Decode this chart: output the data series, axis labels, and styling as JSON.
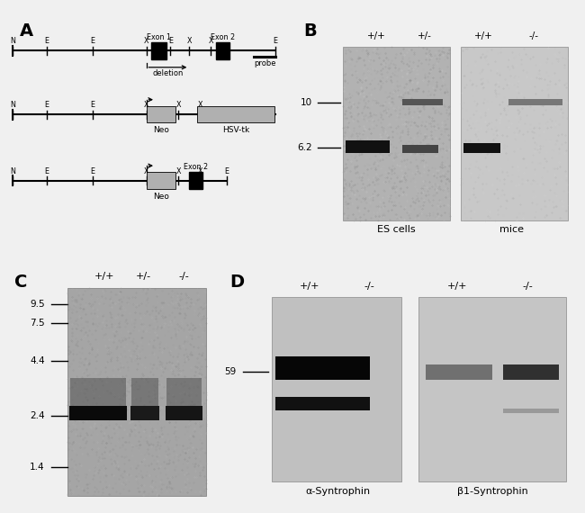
{
  "panel_labels": {
    "A": "A",
    "B": "B",
    "C": "C",
    "D": "D"
  },
  "bg": "#f0f0f0",
  "B_genotypes_ES": [
    "+/+",
    "+/-"
  ],
  "B_genotypes_mice": [
    "+/+",
    "-/-"
  ],
  "B_markers": [
    "10",
    "6.2"
  ],
  "B_label_ES": "ES cells",
  "B_label_mice": "mice",
  "C_genotypes": [
    "+/+",
    "+/-",
    "-/-"
  ],
  "C_markers": [
    "9.5",
    "7.5",
    "4.4",
    "2.4",
    "1.4"
  ],
  "D_marker": "59",
  "alpha_syn": "α-Syntrophin",
  "beta_syn": "β1-Syntrophin",
  "D_genotypes_left": [
    "+/+",
    "-/-"
  ],
  "D_genotypes_right": [
    "+/+",
    "-/-"
  ]
}
